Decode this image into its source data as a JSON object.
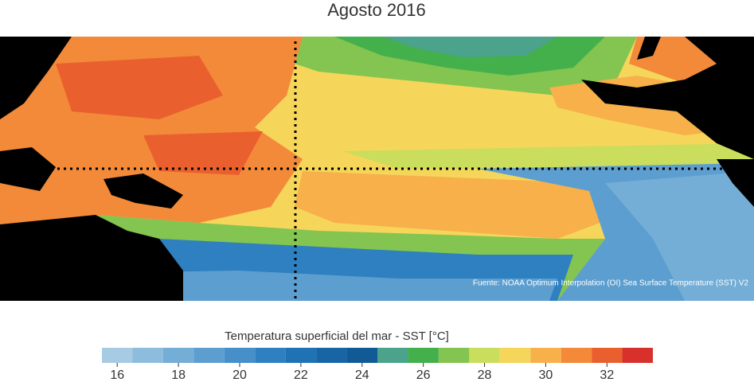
{
  "title": "Agosto 2016",
  "source": "Fuente: NOAA Optimum Interpolation (OI) Sea Surface Temperature (SST) V2",
  "colorbar": {
    "label": "Temperatura superficial del mar - SST  [°C]",
    "bins": [
      15.5,
      16.5,
      17.5,
      18.5,
      19.5,
      20.5,
      21.5,
      22.5,
      23.5,
      24.5,
      25.5,
      26.5,
      27.5,
      28.5,
      29.5,
      30.5,
      31.5,
      32.5,
      33.5
    ],
    "colors": [
      "#a6cbe3",
      "#8dbcdd",
      "#74add6",
      "#5c9ecf",
      "#468fc8",
      "#2f80c0",
      "#1f72b4",
      "#1865a6",
      "#125a96",
      "#4aa38a",
      "#44b04c",
      "#84c450",
      "#cadd5c",
      "#f5d65a",
      "#f8b04a",
      "#f38a3a",
      "#e9602e",
      "#d8302a",
      "#b0181f"
    ],
    "ticks": [
      16,
      18,
      20,
      22,
      24,
      26,
      28,
      30,
      32
    ]
  }
}
